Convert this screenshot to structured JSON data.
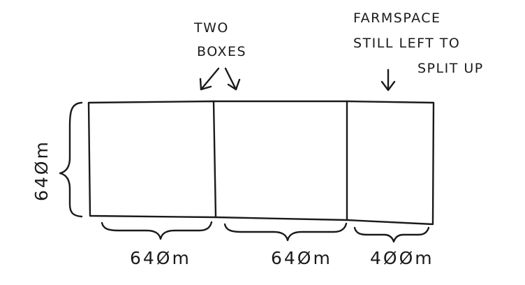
{
  "annotations": {
    "two_boxes": [
      "TWO",
      "BOXES"
    ],
    "remaining": [
      "FARMSPACE",
      "STILL LEFT TO",
      "SPLIT UP"
    ]
  },
  "dimensions": {
    "height": "64Øm",
    "box1_width": "64Øm",
    "box2_width": "64Øm",
    "remainder_width": "4ØØm"
  }
}
